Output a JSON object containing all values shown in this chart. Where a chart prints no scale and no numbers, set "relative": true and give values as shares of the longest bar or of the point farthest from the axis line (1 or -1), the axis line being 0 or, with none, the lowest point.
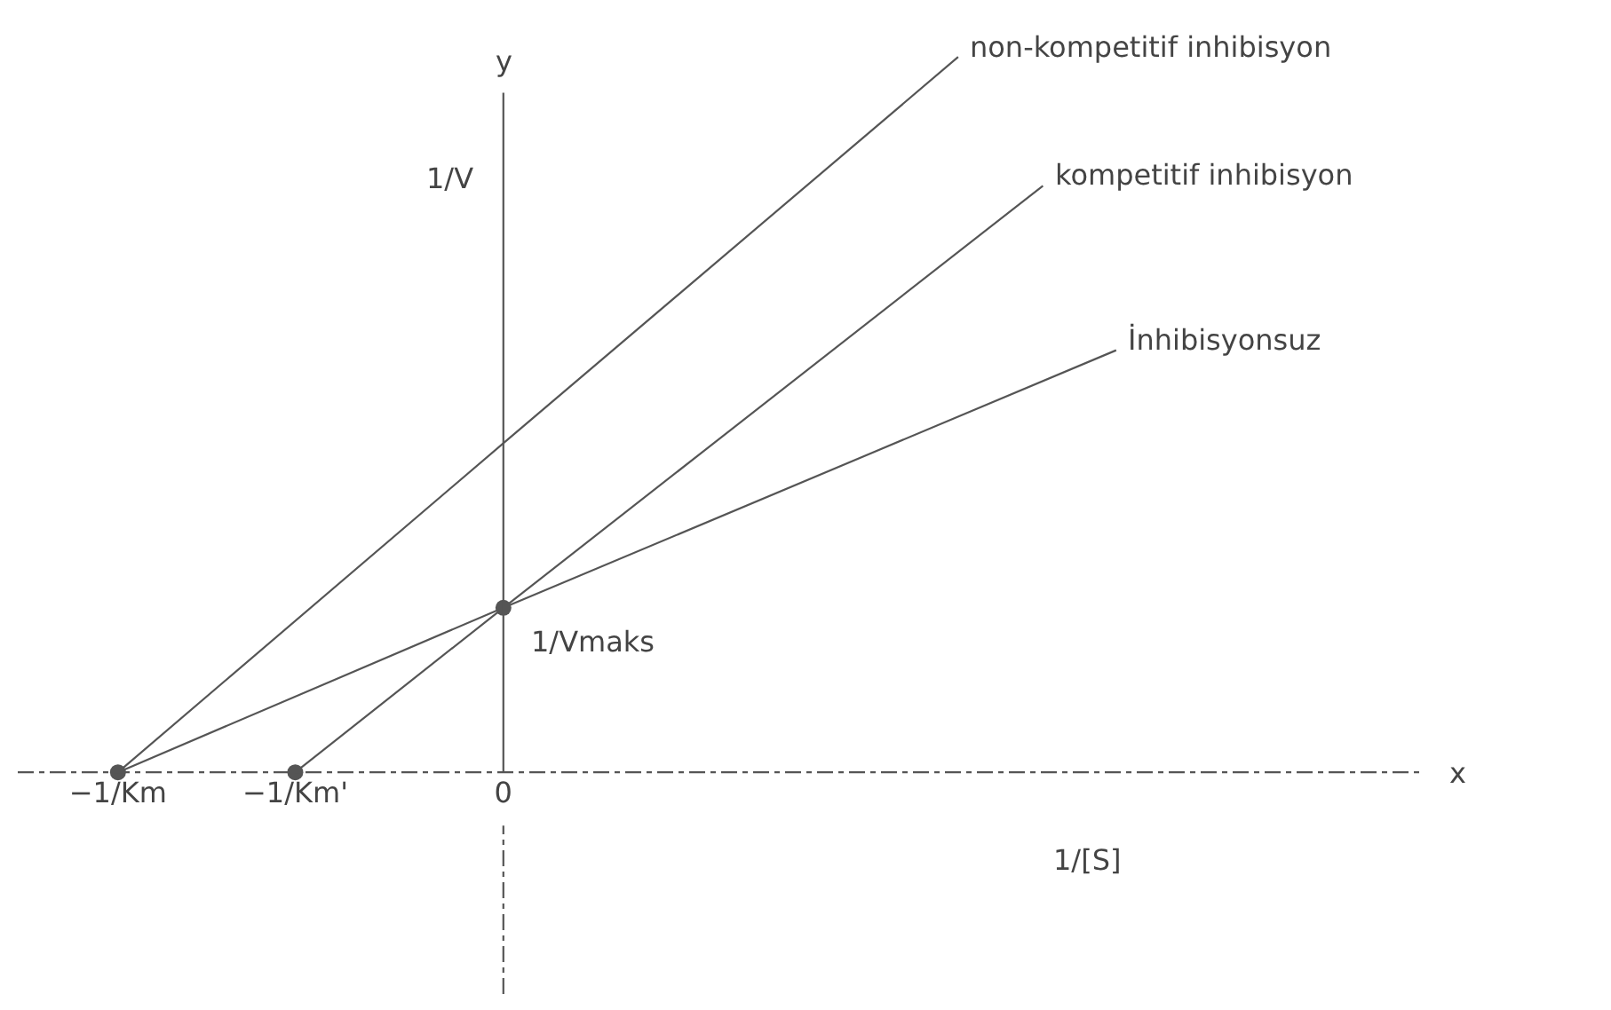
{
  "chart_data": {
    "type": "line",
    "relative": true,
    "xlabel": "1/[S]",
    "ylabel": "1/V",
    "annotations": [
      "x",
      "y",
      {
        "text": "1/Vmaks",
        "x": 0,
        "y": 0.23
      }
    ],
    "xlim": [
      -1.26,
      2.39
    ],
    "xticks": [
      {
        "value": -1,
        "label": "−1/Km"
      },
      {
        "value": -0.54,
        "label": "−1/Km'"
      },
      0
    ],
    "tick_labels": "x",
    "marker": "none",
    "line_style": "solid",
    "series": [
      {
        "name": "non-kompetitif inhibisyon",
        "color": "#555555",
        "x": [
          -1,
          0,
          1.18
        ],
        "values": [
          0,
          0.46,
          1.0
        ]
      },
      {
        "name": "kompetitif inhibisyon",
        "color": "#555555",
        "x": [
          -0.54,
          0,
          1.4
        ],
        "values": [
          0,
          0.23,
          0.82
        ]
      },
      {
        "name": "İnhibisyonsuz",
        "color": "#555555",
        "x": [
          -1,
          0,
          1.59
        ],
        "values": [
          0,
          0.23,
          0.59
        ]
      },
      {
        "type": "scatter",
        "marker": "circle",
        "color": "#555555",
        "x": [
          -1,
          -0.54,
          0
        ],
        "values": [
          0,
          0,
          0.23
        ]
      }
    ]
  }
}
